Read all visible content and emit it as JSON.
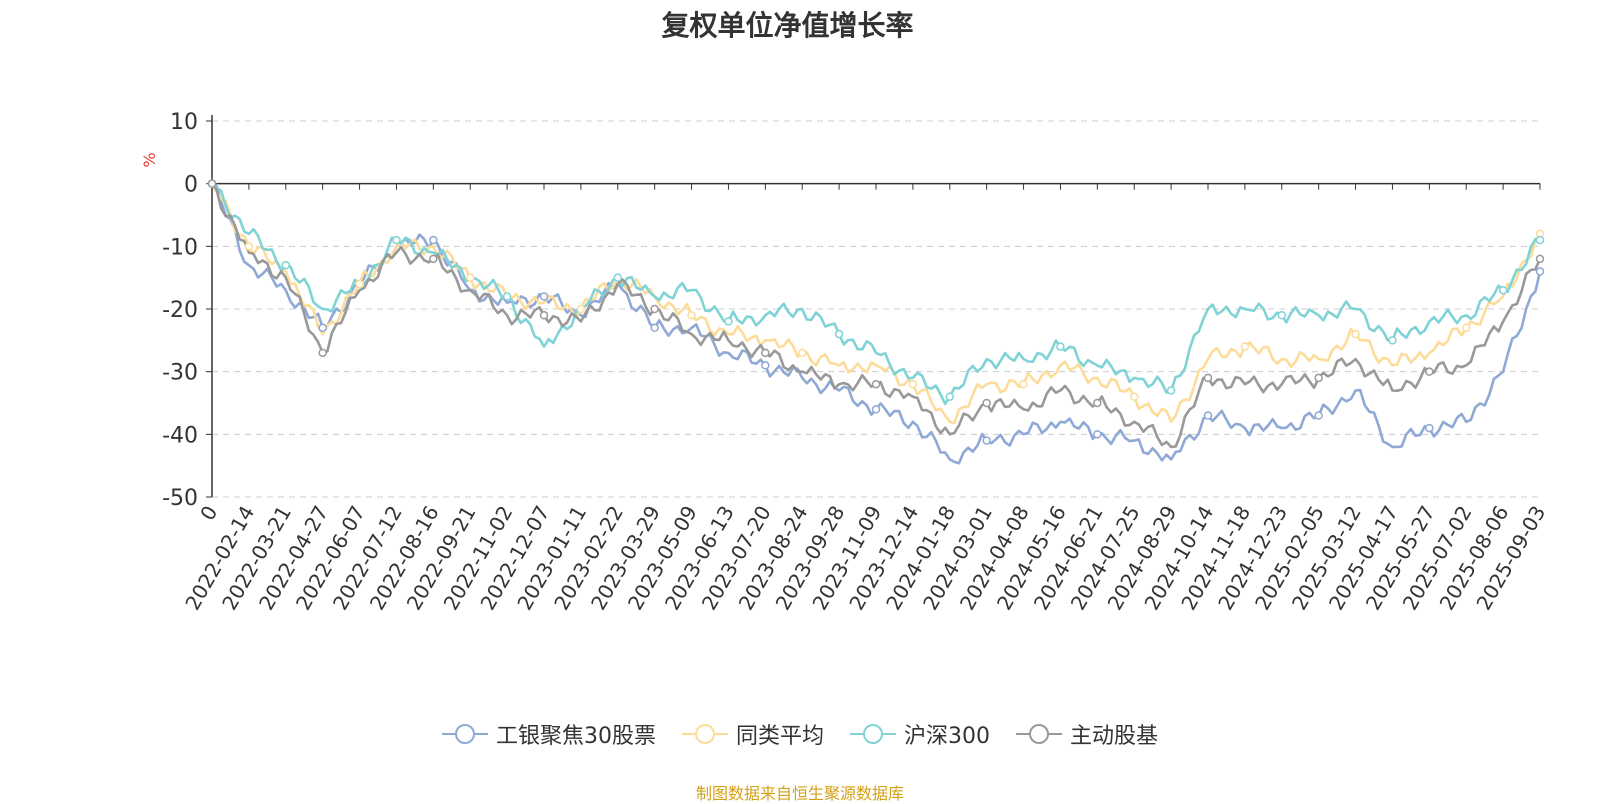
{
  "chart_data": {
    "type": "line",
    "title": "复权单位净值增长率",
    "ylabel": "%",
    "ylim": [
      -50,
      10
    ],
    "yticks": [
      10,
      0,
      -10,
      -20,
      -30,
      -40,
      -50
    ],
    "grid": true,
    "legend_position": "bottom",
    "x_tick_labels": [
      "0",
      "2022-02-14",
      "2022-03-21",
      "2022-04-27",
      "2022-06-07",
      "2022-07-12",
      "2022-08-16",
      "2022-09-21",
      "2022-11-02",
      "2022-12-07",
      "2023-01-11",
      "2023-02-22",
      "2023-03-29",
      "2023-05-09",
      "2023-06-13",
      "2023-07-20",
      "2023-08-24",
      "2023-09-28",
      "2023-11-09",
      "2023-12-14",
      "2024-01-18",
      "2024-03-01",
      "2024-04-08",
      "2024-05-16",
      "2024-06-21",
      "2024-07-25",
      "2024-08-29",
      "2024-10-14",
      "2024-11-18",
      "2024-12-23",
      "2025-02-05",
      "2025-03-12",
      "2025-04-17",
      "2025-05-27",
      "2025-07-02",
      "2025-08-06",
      "2025-09-03"
    ],
    "series": [
      {
        "name": "工银聚焦30股票",
        "color": "#8fa9d6",
        "values": [
          0,
          -13,
          -17,
          -23,
          -16,
          -10,
          -9,
          -17,
          -19,
          -18,
          -21,
          -16,
          -23,
          -23,
          -27,
          -29,
          -31,
          -33,
          -36,
          -38,
          -44,
          -41,
          -40,
          -38,
          -40,
          -41,
          -44,
          -37,
          -39,
          -39,
          -37,
          -33,
          -42,
          -39,
          -38,
          -30,
          -14
        ]
      },
      {
        "name": "同类平均",
        "color": "#fddc9a",
        "values": [
          0,
          -10,
          -14,
          -24,
          -16,
          -10,
          -10,
          -15,
          -18,
          -19,
          -20,
          -15,
          -18,
          -21,
          -24,
          -25,
          -27,
          -29,
          -29,
          -32,
          -38,
          -32,
          -32,
          -29,
          -31,
          -34,
          -38,
          -28,
          -26,
          -28,
          -28,
          -24,
          -29,
          -27,
          -23,
          -18,
          -8
        ]
      },
      {
        "name": "沪深300",
        "color": "#7fd3d6",
        "values": [
          0,
          -8,
          -13,
          -20,
          -16,
          -9,
          -11,
          -15,
          -18,
          -26,
          -20,
          -15,
          -18,
          -17,
          -22,
          -21,
          -20,
          -24,
          -27,
          -31,
          -34,
          -28,
          -28,
          -26,
          -29,
          -31,
          -33,
          -20,
          -20,
          -21,
          -21,
          -20,
          -25,
          -22,
          -21,
          -17,
          -9
        ]
      },
      {
        "name": "主动股基",
        "color": "#999999",
        "values": [
          0,
          -11,
          -15,
          -27,
          -17,
          -11,
          -12,
          -17,
          -21,
          -21,
          -22,
          -16,
          -20,
          -24,
          -25,
          -27,
          -30,
          -32,
          -32,
          -34,
          -40,
          -35,
          -36,
          -33,
          -35,
          -38,
          -42,
          -31,
          -32,
          -32,
          -31,
          -28,
          -33,
          -30,
          -29,
          -22,
          -12
        ]
      }
    ]
  },
  "source_note": "制图数据来自恒生聚源数据库"
}
